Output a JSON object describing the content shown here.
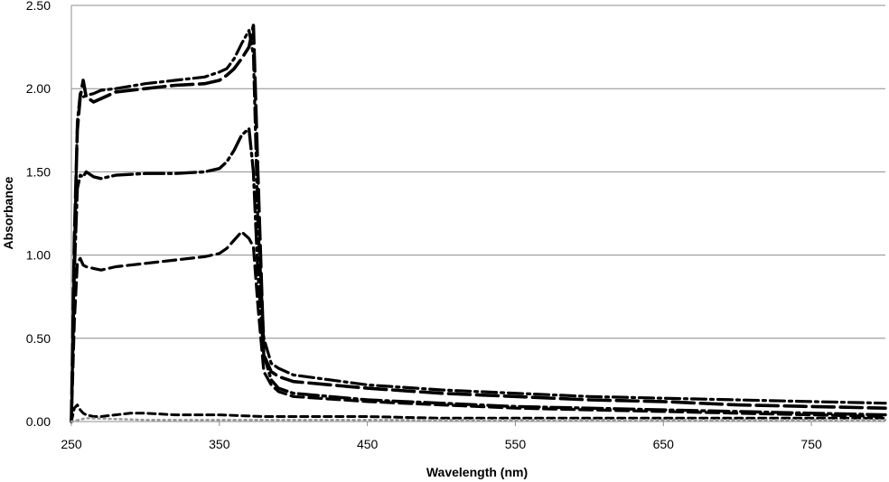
{
  "chart_data": {
    "type": "line",
    "title": "",
    "xlabel": "Wavelength (nm)",
    "ylabel": "Absorbance",
    "xlim": [
      250,
      800
    ],
    "ylim": [
      0,
      2.5
    ],
    "x_ticks": [
      "250",
      "350",
      "450",
      "550",
      "650",
      "750"
    ],
    "y_ticks": [
      "0.00",
      "0.50",
      "1.00",
      "1.50",
      "2.00",
      "2.50"
    ],
    "grid": true,
    "legend": "none",
    "series": [
      {
        "line_style": "dash-dot",
        "color": "#000000",
        "x": [
          250,
          252,
          254,
          256,
          258,
          260,
          265,
          270,
          280,
          300,
          320,
          340,
          350,
          355,
          360,
          365,
          370,
          373,
          376,
          380,
          385,
          390,
          400,
          450,
          500,
          550,
          600,
          650,
          700,
          750,
          800
        ],
        "y": [
          0.0,
          1.0,
          1.8,
          1.97,
          1.95,
          1.96,
          1.97,
          1.99,
          2.0,
          2.03,
          2.05,
          2.07,
          2.1,
          2.12,
          2.18,
          2.27,
          2.35,
          2.2,
          1.2,
          0.5,
          0.35,
          0.32,
          0.28,
          0.22,
          0.19,
          0.17,
          0.15,
          0.14,
          0.13,
          0.12,
          0.11
        ]
      },
      {
        "line_style": "long-dash",
        "color": "#000000",
        "x": [
          250,
          252,
          254,
          256,
          258,
          260,
          265,
          270,
          280,
          300,
          320,
          340,
          350,
          355,
          360,
          365,
          370,
          373,
          376,
          380,
          385,
          390,
          400,
          450,
          500,
          550,
          600,
          650,
          700,
          750,
          800
        ],
        "y": [
          0.0,
          1.1,
          1.75,
          1.95,
          2.05,
          1.95,
          1.92,
          1.94,
          1.98,
          2.0,
          2.02,
          2.03,
          2.05,
          2.08,
          2.12,
          2.18,
          2.25,
          2.38,
          1.5,
          0.4,
          0.3,
          0.27,
          0.24,
          0.2,
          0.17,
          0.15,
          0.13,
          0.12,
          0.1,
          0.09,
          0.08
        ]
      },
      {
        "line_style": "long-dash-dot",
        "color": "#000000",
        "x": [
          250,
          252,
          254,
          256,
          258,
          260,
          265,
          270,
          280,
          300,
          320,
          340,
          350,
          355,
          360,
          365,
          370,
          373,
          376,
          380,
          385,
          390,
          400,
          450,
          500,
          550,
          600,
          650,
          700,
          750,
          800
        ],
        "y": [
          0.0,
          0.9,
          1.4,
          1.48,
          1.47,
          1.5,
          1.47,
          1.46,
          1.48,
          1.49,
          1.49,
          1.5,
          1.52,
          1.56,
          1.63,
          1.72,
          1.76,
          1.5,
          0.9,
          0.4,
          0.25,
          0.2,
          0.17,
          0.13,
          0.11,
          0.09,
          0.08,
          0.07,
          0.06,
          0.05,
          0.04
        ]
      },
      {
        "line_style": "dashed",
        "color": "#000000",
        "x": [
          250,
          252,
          254,
          256,
          258,
          260,
          265,
          270,
          280,
          300,
          320,
          340,
          350,
          355,
          360,
          365,
          370,
          373,
          376,
          380,
          385,
          390,
          400,
          450,
          500,
          550,
          600,
          650,
          700,
          750,
          800
        ],
        "y": [
          0.0,
          0.6,
          0.95,
          0.98,
          0.94,
          0.93,
          0.92,
          0.91,
          0.93,
          0.95,
          0.97,
          0.99,
          1.01,
          1.04,
          1.09,
          1.14,
          1.1,
          1.05,
          0.7,
          0.3,
          0.22,
          0.18,
          0.15,
          0.12,
          0.1,
          0.08,
          0.07,
          0.06,
          0.05,
          0.04,
          0.03
        ]
      },
      {
        "line_style": "short-dash",
        "color": "#000000",
        "x": [
          250,
          252,
          254,
          256,
          258,
          260,
          265,
          270,
          280,
          290,
          300,
          320,
          350,
          380,
          400,
          450,
          500,
          550,
          600,
          650,
          700,
          750,
          800
        ],
        "y": [
          0.0,
          0.08,
          0.1,
          0.07,
          0.05,
          0.04,
          0.03,
          0.03,
          0.04,
          0.05,
          0.05,
          0.04,
          0.04,
          0.03,
          0.03,
          0.03,
          0.02,
          0.02,
          0.02,
          0.02,
          0.02,
          0.02,
          0.02
        ]
      },
      {
        "line_style": "dotted",
        "color": "#9a9a9a",
        "x": [
          250,
          260,
          300,
          350,
          400,
          450,
          500,
          550,
          600,
          650,
          700,
          750,
          800
        ],
        "y": [
          0.0,
          0.02,
          0.01,
          0.01,
          0.01,
          0.01,
          0.01,
          0.01,
          0.01,
          0.01,
          0.01,
          0.01,
          0.01
        ]
      }
    ]
  }
}
